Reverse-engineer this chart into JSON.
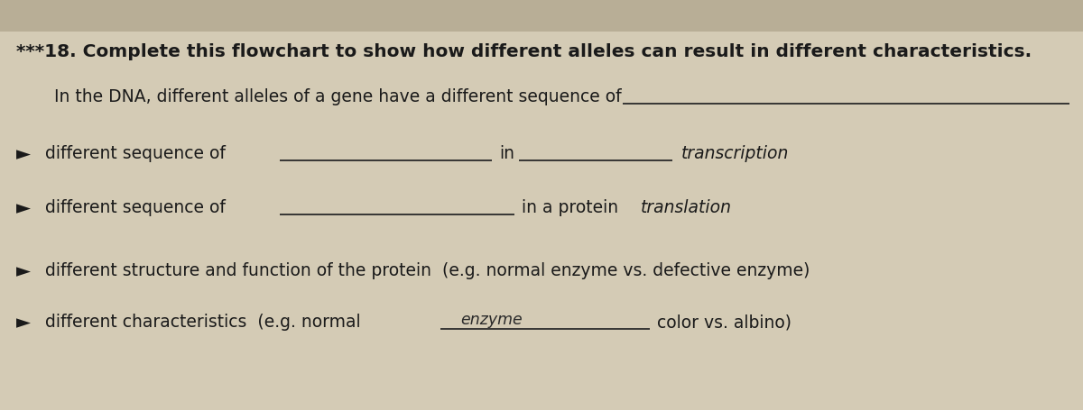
{
  "bg_color": "#d4cbb5",
  "paper_color": "#e8e0cc",
  "text_color": "#1a1a1a",
  "line_color": "#2a2a2a",
  "handwritten_color": "#2a2a2a",
  "title_line": "***18. Complete this flowchart to show how different alleles can result in different characteristics.",
  "intro_line": "In the DNA, different alleles of a gene have a different sequence of",
  "row1_arrow": ">",
  "row1_prefix": "different sequence of",
  "row1_mid": "in",
  "row1_suffix": "transcription",
  "row2_arrow": ">",
  "row2_prefix": "different sequence of",
  "row2_mid": "in a protein",
  "row2_suffix": "translation",
  "row3_arrow": ">",
  "row3_text": "different structure and function of the protein  (e.g. normal enzyme vs. defective enzyme)",
  "row4_arrow": ">",
  "row4_prefix": "different characteristics  (e.g. normal",
  "row4_handwritten": "enzyme",
  "row4_suffix": "color vs. albino)",
  "title_fontsize": 14.5,
  "body_fontsize": 13.5,
  "arrow_fontsize": 15.0
}
